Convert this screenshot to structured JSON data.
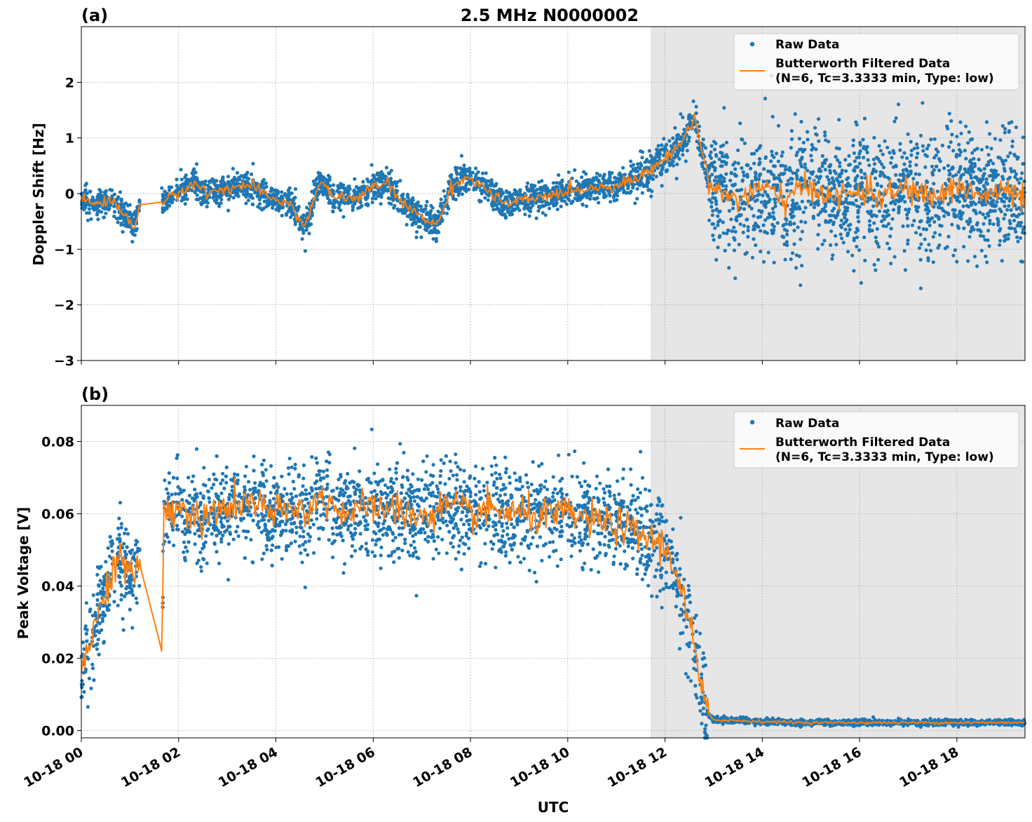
{
  "figure": {
    "title": "2.5 MHz N0000002",
    "xlabel": "UTC"
  },
  "colors": {
    "raw": "#1f77b4",
    "filtered": "#ff7f0e",
    "shade": "#e6e6e6",
    "grid": "#b0b0b0"
  },
  "chart_data": [
    {
      "type": "scatter",
      "panel_label": "(a)",
      "ylabel": "Doppler Shift [Hz]",
      "ylim": [
        -3.0,
        3.0
      ],
      "yticks": [
        -3,
        -2,
        -1,
        0,
        1,
        2
      ],
      "ytick_labels": [
        "−3",
        "−2",
        "−1",
        "0",
        "1",
        "2"
      ],
      "xlim_hours": [
        0,
        19.4
      ],
      "xticks_hours": [
        0,
        2,
        4,
        6,
        8,
        10,
        12,
        14,
        16,
        18
      ],
      "xtick_labels": [
        "10-18 00",
        "10-18 02",
        "10-18 04",
        "10-18 06",
        "10-18 08",
        "10-18 10",
        "10-18 12",
        "10-18 14",
        "10-18 16",
        "10-18 18"
      ],
      "shaded_from_hours": 11.7,
      "grid": true,
      "legend_position": "top-right",
      "series": [
        {
          "name": "Raw Data",
          "kind": "points"
        },
        {
          "name": "Butterworth Filtered Data",
          "name_line2": "(N=6, Tc=3.3333 min, Type: low)",
          "kind": "line",
          "x_hours": [
            0,
            0.3,
            0.6,
            0.8,
            1.0,
            1.1,
            1.2,
            1.7,
            2.0,
            2.3,
            2.6,
            3.0,
            3.5,
            3.7,
            4.0,
            4.3,
            4.6,
            4.9,
            5.2,
            5.6,
            6.0,
            6.3,
            6.6,
            7.0,
            7.3,
            7.6,
            7.9,
            8.3,
            8.7,
            9.2,
            9.6,
            10.0,
            10.5,
            11.0,
            11.5,
            11.8,
            12.1,
            12.4,
            12.6,
            12.8,
            13.0,
            13.5,
            14.0,
            14.5,
            15.0,
            15.5,
            16.0,
            16.5,
            17.0,
            17.5,
            18.0,
            18.5,
            19.0,
            19.4
          ],
          "y": [
            -0.1,
            -0.2,
            -0.1,
            -0.3,
            -0.5,
            -0.6,
            -0.2,
            -0.15,
            0.0,
            0.2,
            0.0,
            0.1,
            0.15,
            0.0,
            -0.1,
            -0.2,
            -0.6,
            0.2,
            -0.05,
            -0.1,
            0.1,
            0.2,
            -0.2,
            -0.4,
            -0.6,
            0.1,
            0.3,
            0.1,
            -0.2,
            -0.1,
            -0.05,
            0.05,
            0.1,
            0.15,
            0.3,
            0.5,
            0.7,
            1.0,
            1.4,
            0.6,
            0.05,
            -0.1,
            0.1,
            -0.1,
            0.15,
            -0.1,
            0.05,
            -0.05,
            0.1,
            -0.1,
            0.15,
            -0.05,
            0.05,
            -0.1
          ]
        }
      ]
    },
    {
      "type": "scatter",
      "panel_label": "(b)",
      "ylabel": "Peak Voltage [V]",
      "ylim": [
        -0.002,
        0.09
      ],
      "yticks": [
        0.0,
        0.02,
        0.04,
        0.06,
        0.08
      ],
      "ytick_labels": [
        "0.00",
        "0.02",
        "0.04",
        "0.06",
        "0.08"
      ],
      "xlim_hours": [
        0,
        19.4
      ],
      "xticks_hours": [
        0,
        2,
        4,
        6,
        8,
        10,
        12,
        14,
        16,
        18
      ],
      "xtick_labels": [
        "10-18 00",
        "10-18 02",
        "10-18 04",
        "10-18 06",
        "10-18 08",
        "10-18 10",
        "10-18 12",
        "10-18 14",
        "10-18 16",
        "10-18 18"
      ],
      "shaded_from_hours": 11.7,
      "grid": true,
      "legend_position": "top-right",
      "series": [
        {
          "name": "Raw Data",
          "kind": "points"
        },
        {
          "name": "Butterworth Filtered Data",
          "name_line2": "(N=6, Tc=3.3333 min, Type: low)",
          "kind": "line",
          "x_hours": [
            0,
            0.2,
            0.4,
            0.6,
            0.8,
            1.0,
            1.2,
            1.6,
            1.65,
            1.7,
            2.0,
            2.5,
            3.0,
            3.5,
            4.0,
            4.5,
            5.0,
            5.5,
            6.0,
            6.5,
            7.0,
            7.5,
            8.0,
            8.5,
            9.0,
            9.5,
            10.0,
            10.5,
            11.0,
            11.5,
            11.9,
            12.2,
            12.5,
            12.7,
            12.85,
            13.0,
            14.0,
            15.0,
            16.0,
            17.0,
            18.0,
            19.0,
            19.4
          ],
          "y": [
            0.016,
            0.025,
            0.035,
            0.043,
            0.048,
            0.042,
            0.046,
            0.025,
            0.022,
            0.06,
            0.062,
            0.058,
            0.062,
            0.063,
            0.06,
            0.061,
            0.064,
            0.06,
            0.062,
            0.061,
            0.059,
            0.062,
            0.06,
            0.061,
            0.06,
            0.059,
            0.06,
            0.058,
            0.057,
            0.054,
            0.052,
            0.046,
            0.03,
            0.015,
            0.005,
            0.003,
            0.0025,
            0.0022,
            0.0022,
            0.0022,
            0.0022,
            0.0022,
            0.0022
          ]
        }
      ]
    }
  ]
}
